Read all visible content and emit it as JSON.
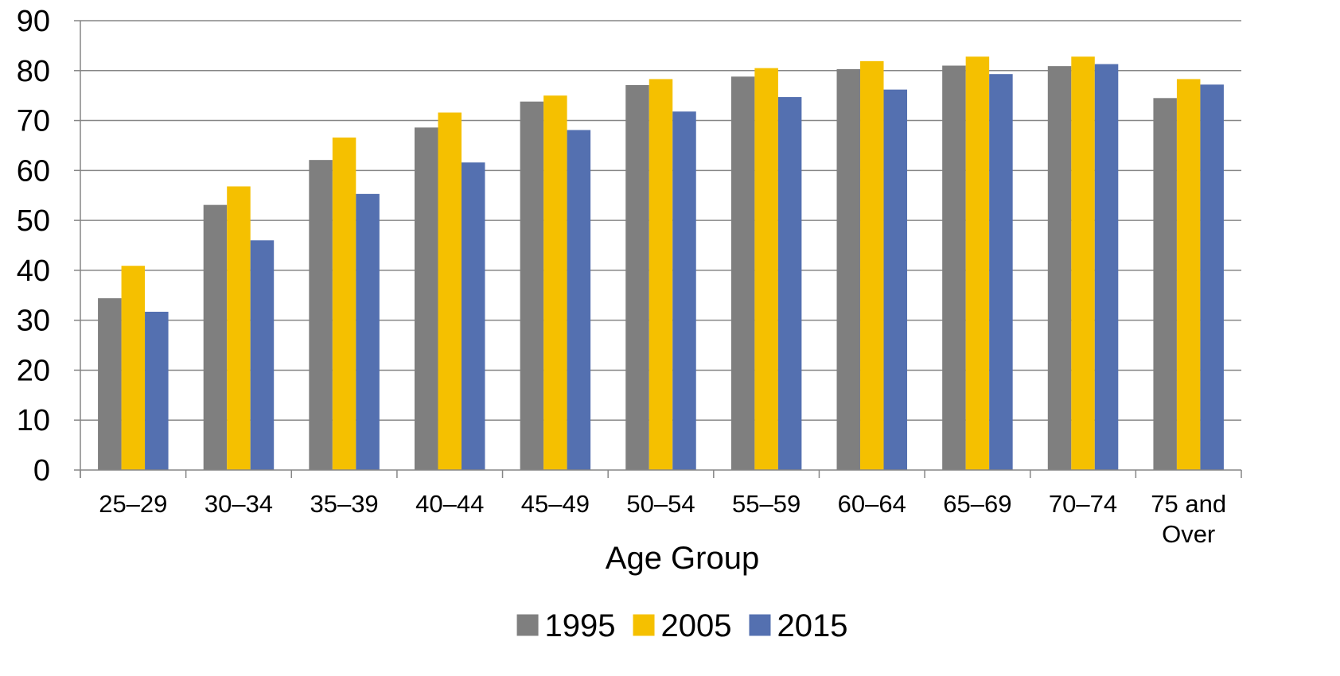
{
  "chart_data": {
    "type": "bar",
    "title": "",
    "xlabel": "Age Group",
    "ylabel": "",
    "ylim": [
      0,
      90
    ],
    "yticks": [
      0,
      10,
      20,
      30,
      40,
      50,
      60,
      70,
      80,
      90
    ],
    "grid": true,
    "legend_position": "bottom",
    "categories": [
      [
        "25–29"
      ],
      [
        "30–34"
      ],
      [
        "35–39"
      ],
      [
        "40–44"
      ],
      [
        "45–49"
      ],
      [
        "50–54"
      ],
      [
        "55–59"
      ],
      [
        "60–64"
      ],
      [
        "65–69"
      ],
      [
        "70–74"
      ],
      [
        "75 and",
        "Over"
      ]
    ],
    "series": [
      {
        "name": "1995",
        "color": "#7f7f7f",
        "values": [
          34.4,
          53.1,
          62.1,
          68.6,
          73.8,
          77.1,
          78.8,
          80.3,
          81.0,
          80.9,
          74.5
        ]
      },
      {
        "name": "2005",
        "color": "#f5c000",
        "values": [
          40.9,
          56.8,
          66.6,
          71.6,
          75.0,
          78.3,
          80.5,
          81.9,
          82.8,
          82.8,
          78.3
        ]
      },
      {
        "name": "2015",
        "color": "#5470b0",
        "values": [
          31.7,
          46.0,
          55.3,
          61.6,
          68.1,
          71.8,
          74.7,
          76.2,
          79.3,
          81.3,
          77.2
        ]
      }
    ]
  }
}
